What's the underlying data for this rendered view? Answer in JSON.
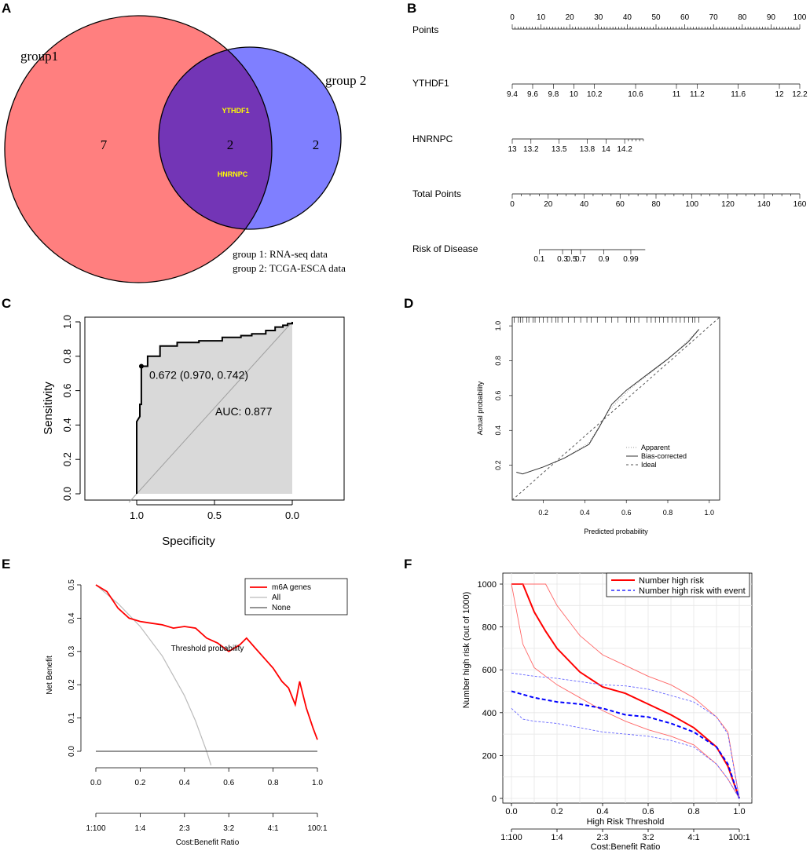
{
  "panel_labels": [
    "A",
    "B",
    "C",
    "D",
    "E",
    "F"
  ],
  "chart_data": [
    {
      "panel": "A",
      "type": "venn",
      "sets": [
        {
          "name": "group1",
          "only": 7,
          "color": "#ff7f7f"
        },
        {
          "name": "group 2",
          "only": 2,
          "color": "#7f7fff"
        }
      ],
      "intersection": {
        "count": 2,
        "genes": [
          "YTHDF1",
          "HNRNPC"
        ],
        "color": "#7335b6",
        "gene_color": "#ffff00"
      },
      "legend": [
        "group 1: RNA-seq data",
        "group 2: TCGA-ESCA data"
      ]
    },
    {
      "panel": "B",
      "type": "nomogram",
      "rows": [
        {
          "label": "Points",
          "ticks": [
            "0",
            "10",
            "20",
            "30",
            "40",
            "50",
            "60",
            "70",
            "80",
            "90",
            "100"
          ],
          "range": [
            0,
            100
          ],
          "minor": 1
        },
        {
          "label": "YTHDF1",
          "ticks": [
            "9.4",
            "9.6",
            "9.8",
            "10",
            "10.2",
            "10.6",
            "11",
            "11.2",
            "11.6",
            "12",
            "12.2"
          ],
          "points": [
            0,
            7.1,
            14.3,
            21.4,
            28.6,
            42.9,
            57.1,
            64.3,
            78.6,
            92.9,
            100
          ]
        },
        {
          "label": "HNRNPC",
          "ticks": [
            "13",
            "13.2",
            "13.5",
            "13.8",
            "14",
            "14.2"
          ],
          "points": [
            0,
            6.5,
            16.3,
            26.1,
            32.6,
            39.1
          ],
          "end_points": 45.6
        },
        {
          "label": "Total Points",
          "ticks": [
            "0",
            "20",
            "40",
            "60",
            "80",
            "100",
            "120",
            "140",
            "160"
          ],
          "range": [
            0,
            160
          ],
          "minor": 4
        },
        {
          "label": "Risk of Disease",
          "ticks": [
            "0.1",
            "0.3",
            "0.5",
            "0.7",
            "0.9",
            "0.99"
          ],
          "total_points": [
            15,
            28,
            33,
            38,
            51,
            66
          ],
          "line_range": [
            15,
            74
          ]
        }
      ]
    },
    {
      "panel": "C",
      "type": "line",
      "subtype": "roc",
      "xlabel": "Specificity",
      "ylabel": "Sensitivity",
      "xlim": [
        1.0,
        0.0
      ],
      "ylim": [
        0,
        1
      ],
      "x_ticks": [
        "1.0",
        "0.5",
        "0.0"
      ],
      "y_ticks": [
        "0.0",
        "0.2",
        "0.4",
        "0.6",
        "0.8",
        "1.0"
      ],
      "auc_text": "AUC: 0.877",
      "threshold_text": "0.672 (0.970, 0.742)",
      "threshold_point": {
        "specificity": 0.97,
        "sensitivity": 0.742
      },
      "curve": [
        [
          1,
          0
        ],
        [
          1,
          0.42
        ],
        [
          0.98,
          0.45
        ],
        [
          0.98,
          0.52
        ],
        [
          0.97,
          0.52
        ],
        [
          0.97,
          0.742
        ],
        [
          0.93,
          0.742
        ],
        [
          0.93,
          0.8
        ],
        [
          0.85,
          0.8
        ],
        [
          0.85,
          0.86
        ],
        [
          0.74,
          0.86
        ],
        [
          0.74,
          0.88
        ],
        [
          0.6,
          0.88
        ],
        [
          0.6,
          0.89
        ],
        [
          0.45,
          0.89
        ],
        [
          0.45,
          0.91
        ],
        [
          0.33,
          0.91
        ],
        [
          0.33,
          0.92
        ],
        [
          0.26,
          0.92
        ],
        [
          0.26,
          0.93
        ],
        [
          0.17,
          0.93
        ],
        [
          0.17,
          0.95
        ],
        [
          0.11,
          0.95
        ],
        [
          0.11,
          0.97
        ],
        [
          0.06,
          0.97
        ],
        [
          0.06,
          0.98
        ],
        [
          0.03,
          0.98
        ],
        [
          0.03,
          0.99
        ],
        [
          0.0,
          0.99
        ],
        [
          0.0,
          1.0
        ]
      ]
    },
    {
      "panel": "D",
      "type": "line",
      "subtype": "calibration",
      "xlabel": "Predicted probability",
      "ylabel": "Actual probability",
      "xlim": [
        0.05,
        1.05
      ],
      "ylim": [
        0.0,
        1.05
      ],
      "x_ticks": [
        "0.2",
        "0.4",
        "0.6",
        "0.8",
        "1.0"
      ],
      "y_ticks": [
        "0.2",
        "0.4",
        "0.6",
        "0.8",
        "1.0"
      ],
      "legend": [
        "Apparent",
        "Bias-corrected",
        "Ideal"
      ],
      "apparent": [
        [
          0.07,
          0.16
        ],
        [
          0.1,
          0.15
        ],
        [
          0.2,
          0.19
        ],
        [
          0.3,
          0.24
        ],
        [
          0.42,
          0.33
        ],
        [
          0.52,
          0.52
        ],
        [
          0.62,
          0.64
        ],
        [
          0.75,
          0.76
        ],
        [
          0.85,
          0.86
        ],
        [
          0.95,
          0.98
        ]
      ],
      "bias_corrected": [
        [
          0.07,
          0.16
        ],
        [
          0.1,
          0.15
        ],
        [
          0.2,
          0.19
        ],
        [
          0.3,
          0.24
        ],
        [
          0.42,
          0.32
        ],
        [
          0.47,
          0.42
        ],
        [
          0.53,
          0.55
        ],
        [
          0.6,
          0.63
        ],
        [
          0.7,
          0.72
        ],
        [
          0.8,
          0.81
        ],
        [
          0.9,
          0.91
        ],
        [
          0.95,
          0.98
        ]
      ],
      "rug": [
        0.06,
        0.08,
        0.09,
        0.1,
        0.12,
        0.13,
        0.15,
        0.16,
        0.18,
        0.2,
        0.22,
        0.24,
        0.26,
        0.27,
        0.29,
        0.32,
        0.35,
        0.38,
        0.41,
        0.43,
        0.46,
        0.5,
        0.53,
        0.56,
        0.6,
        0.62,
        0.64,
        0.66,
        0.7,
        0.72,
        0.74,
        0.76,
        0.78,
        0.8,
        0.82,
        0.84,
        0.86,
        0.88,
        0.9,
        0.92,
        0.93,
        0.95
      ]
    },
    {
      "panel": "E",
      "type": "line",
      "subtype": "decision curve",
      "xlabel": "Threshold probability",
      "ylabel": "Net Benefit",
      "xlim": [
        0,
        1
      ],
      "ylim": [
        -0.03,
        0.52
      ],
      "x_ticks": [
        "0.0",
        "0.2",
        "0.4",
        "0.6",
        "0.8",
        "1.0"
      ],
      "y_ticks": [
        "0.0",
        "0.1",
        "0.2",
        "0.3",
        "0.4",
        "0.5"
      ],
      "x2label": "Cost:Benefit Ratio",
      "x2_ticks": [
        "1:100",
        "1:4",
        "2:3",
        "3:2",
        "4:1",
        "100:1"
      ],
      "series": [
        {
          "name": "m6A genes",
          "color": "#ff0000",
          "points": [
            [
              0,
              0.5
            ],
            [
              0.05,
              0.48
            ],
            [
              0.1,
              0.43
            ],
            [
              0.15,
              0.4
            ],
            [
              0.2,
              0.39
            ],
            [
              0.25,
              0.385
            ],
            [
              0.3,
              0.38
            ],
            [
              0.35,
              0.37
            ],
            [
              0.4,
              0.375
            ],
            [
              0.45,
              0.37
            ],
            [
              0.5,
              0.34
            ],
            [
              0.55,
              0.325
            ],
            [
              0.6,
              0.3
            ],
            [
              0.65,
              0.32
            ],
            [
              0.68,
              0.34
            ],
            [
              0.72,
              0.31
            ],
            [
              0.76,
              0.28
            ],
            [
              0.8,
              0.25
            ],
            [
              0.84,
              0.21
            ],
            [
              0.87,
              0.19
            ],
            [
              0.9,
              0.14
            ],
            [
              0.92,
              0.21
            ],
            [
              0.95,
              0.13
            ],
            [
              0.98,
              0.07
            ],
            [
              1.0,
              0.035
            ]
          ]
        },
        {
          "name": "All",
          "color": "#bbbbbb",
          "points": [
            [
              0,
              0.5
            ],
            [
              0.1,
              0.444
            ],
            [
              0.2,
              0.375
            ],
            [
              0.3,
              0.286
            ],
            [
              0.4,
              0.167
            ],
            [
              0.45,
              0.091
            ],
            [
              0.5,
              0
            ],
            [
              0.52,
              -0.042
            ]
          ]
        },
        {
          "name": "None",
          "color": "#555555",
          "points": [
            [
              0,
              0
            ],
            [
              1,
              0
            ]
          ]
        }
      ]
    },
    {
      "panel": "F",
      "type": "line",
      "subtype": "clinical impact",
      "xlabel": "High Risk Threshold",
      "ylabel": "Number high risk (out of 1000)",
      "xlim": [
        0,
        1
      ],
      "ylim": [
        0,
        1000
      ],
      "x_ticks": [
        "0.0",
        "0.2",
        "0.4",
        "0.6",
        "0.8",
        "1.0"
      ],
      "y_ticks": [
        "0",
        "200",
        "400",
        "600",
        "800",
        "1000"
      ],
      "x2label": "Cost:Benefit Ratio",
      "x2_ticks": [
        "1:100",
        "1:4",
        "2:3",
        "3:2",
        "4:1",
        "100:1"
      ],
      "legend": [
        "Number high risk",
        "Number high risk with event"
      ],
      "series": [
        {
          "name": "Number high risk",
          "color": "#ff0000",
          "points": [
            [
              0,
              1000
            ],
            [
              0.05,
              1000
            ],
            [
              0.1,
              870
            ],
            [
              0.15,
              780
            ],
            [
              0.2,
              700
            ],
            [
              0.3,
              590
            ],
            [
              0.4,
              520
            ],
            [
              0.5,
              490
            ],
            [
              0.6,
              440
            ],
            [
              0.7,
              390
            ],
            [
              0.8,
              330
            ],
            [
              0.9,
              240
            ],
            [
              0.95,
              150
            ],
            [
              1.0,
              0
            ]
          ]
        },
        {
          "name": "Number high risk upper",
          "color": "#ff6666",
          "points": [
            [
              0,
              1000
            ],
            [
              0.15,
              1000
            ],
            [
              0.2,
              900
            ],
            [
              0.3,
              760
            ],
            [
              0.4,
              670
            ],
            [
              0.5,
              620
            ],
            [
              0.6,
              570
            ],
            [
              0.7,
              530
            ],
            [
              0.8,
              470
            ],
            [
              0.9,
              380
            ],
            [
              0.95,
              310
            ],
            [
              1.0,
              0
            ]
          ]
        },
        {
          "name": "Number high risk lower",
          "color": "#ff6666",
          "points": [
            [
              0,
              1000
            ],
            [
              0.05,
              720
            ],
            [
              0.1,
              610
            ],
            [
              0.2,
              530
            ],
            [
              0.3,
              470
            ],
            [
              0.4,
              410
            ],
            [
              0.5,
              360
            ],
            [
              0.6,
              320
            ],
            [
              0.7,
              290
            ],
            [
              0.8,
              250
            ],
            [
              0.9,
              160
            ],
            [
              0.95,
              90
            ],
            [
              1.0,
              0
            ]
          ]
        },
        {
          "name": "Number high risk with event",
          "color": "#0000ff",
          "points": [
            [
              0,
              500
            ],
            [
              0.1,
              470
            ],
            [
              0.2,
              450
            ],
            [
              0.3,
              440
            ],
            [
              0.4,
              420
            ],
            [
              0.5,
              390
            ],
            [
              0.6,
              380
            ],
            [
              0.7,
              350
            ],
            [
              0.8,
              310
            ],
            [
              0.9,
              240
            ],
            [
              0.95,
              160
            ],
            [
              1.0,
              0
            ]
          ]
        },
        {
          "name": "Number high risk with event upper",
          "color": "#6666ff",
          "points": [
            [
              0,
              585
            ],
            [
              0.1,
              570
            ],
            [
              0.2,
              560
            ],
            [
              0.3,
              545
            ],
            [
              0.4,
              530
            ],
            [
              0.5,
              525
            ],
            [
              0.6,
              510
            ],
            [
              0.7,
              480
            ],
            [
              0.8,
              450
            ],
            [
              0.9,
              380
            ],
            [
              0.95,
              300
            ],
            [
              1.0,
              0
            ]
          ]
        },
        {
          "name": "Number high risk with event lower",
          "color": "#6666ff",
          "points": [
            [
              0,
              420
            ],
            [
              0.05,
              370
            ],
            [
              0.1,
              360
            ],
            [
              0.2,
              350
            ],
            [
              0.3,
              330
            ],
            [
              0.4,
              310
            ],
            [
              0.5,
              300
            ],
            [
              0.6,
              290
            ],
            [
              0.7,
              270
            ],
            [
              0.8,
              240
            ],
            [
              0.9,
              160
            ],
            [
              0.95,
              90
            ],
            [
              1.0,
              0
            ]
          ]
        }
      ]
    }
  ]
}
